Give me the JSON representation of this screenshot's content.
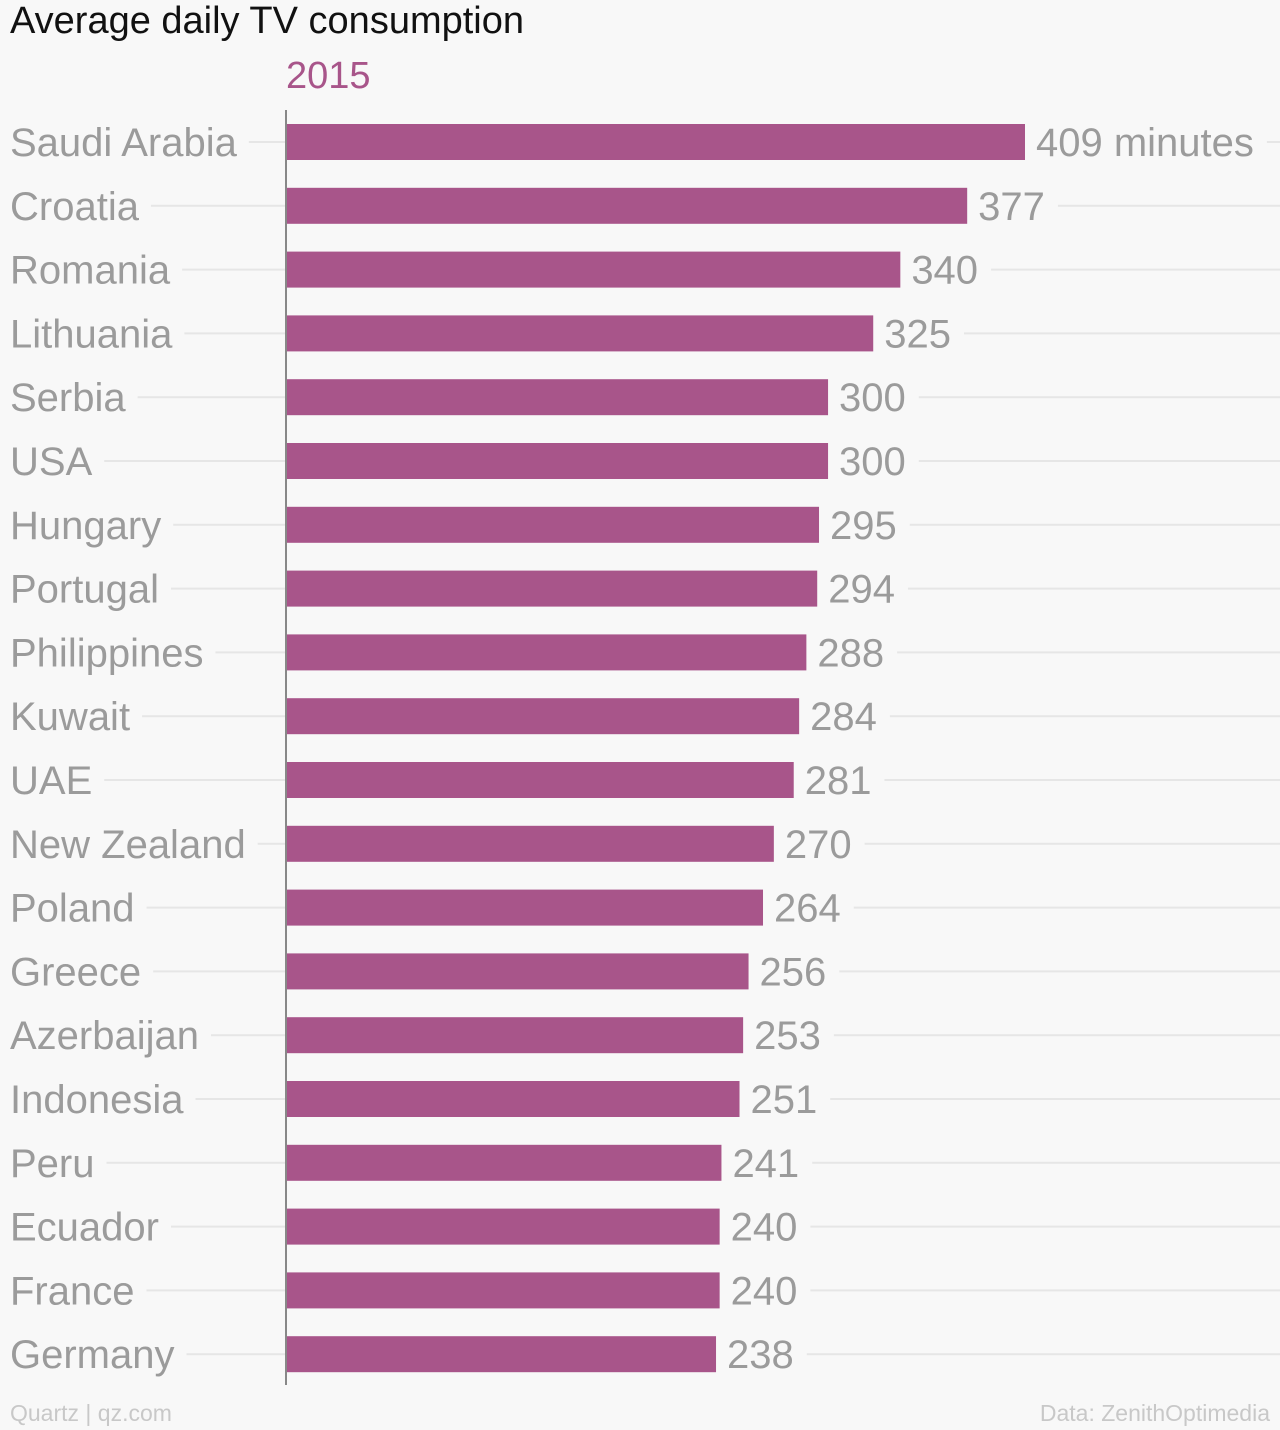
{
  "chart_data": {
    "type": "bar",
    "orientation": "horizontal",
    "title": "Average daily TV consumption",
    "series": [
      {
        "name": "2015",
        "values": [
          409,
          377,
          340,
          325,
          300,
          300,
          295,
          294,
          288,
          284,
          281,
          270,
          264,
          256,
          253,
          251,
          241,
          240,
          240,
          238
        ]
      }
    ],
    "categories": [
      "Saudi Arabia",
      "Croatia",
      "Romania",
      "Lithuania",
      "Serbia",
      "USA",
      "Hungary",
      "Portugal",
      "Philippines",
      "Kuwait",
      "UAE",
      "New Zealand",
      "Poland",
      "Greece",
      "Azerbaijan",
      "Indonesia",
      "Peru",
      "Ecuador",
      "France",
      "Germany"
    ],
    "first_value_suffix": " minutes",
    "xlim": [
      0,
      409
    ],
    "grid": true,
    "colors": {
      "bar": "#a8558a",
      "label": "#9b9b9b",
      "grid": "#e6e6e6",
      "axis": "#888888"
    }
  },
  "footer": {
    "source_left": "Quartz | qz.com",
    "source_right": "Data: ZenithOptimedia"
  }
}
